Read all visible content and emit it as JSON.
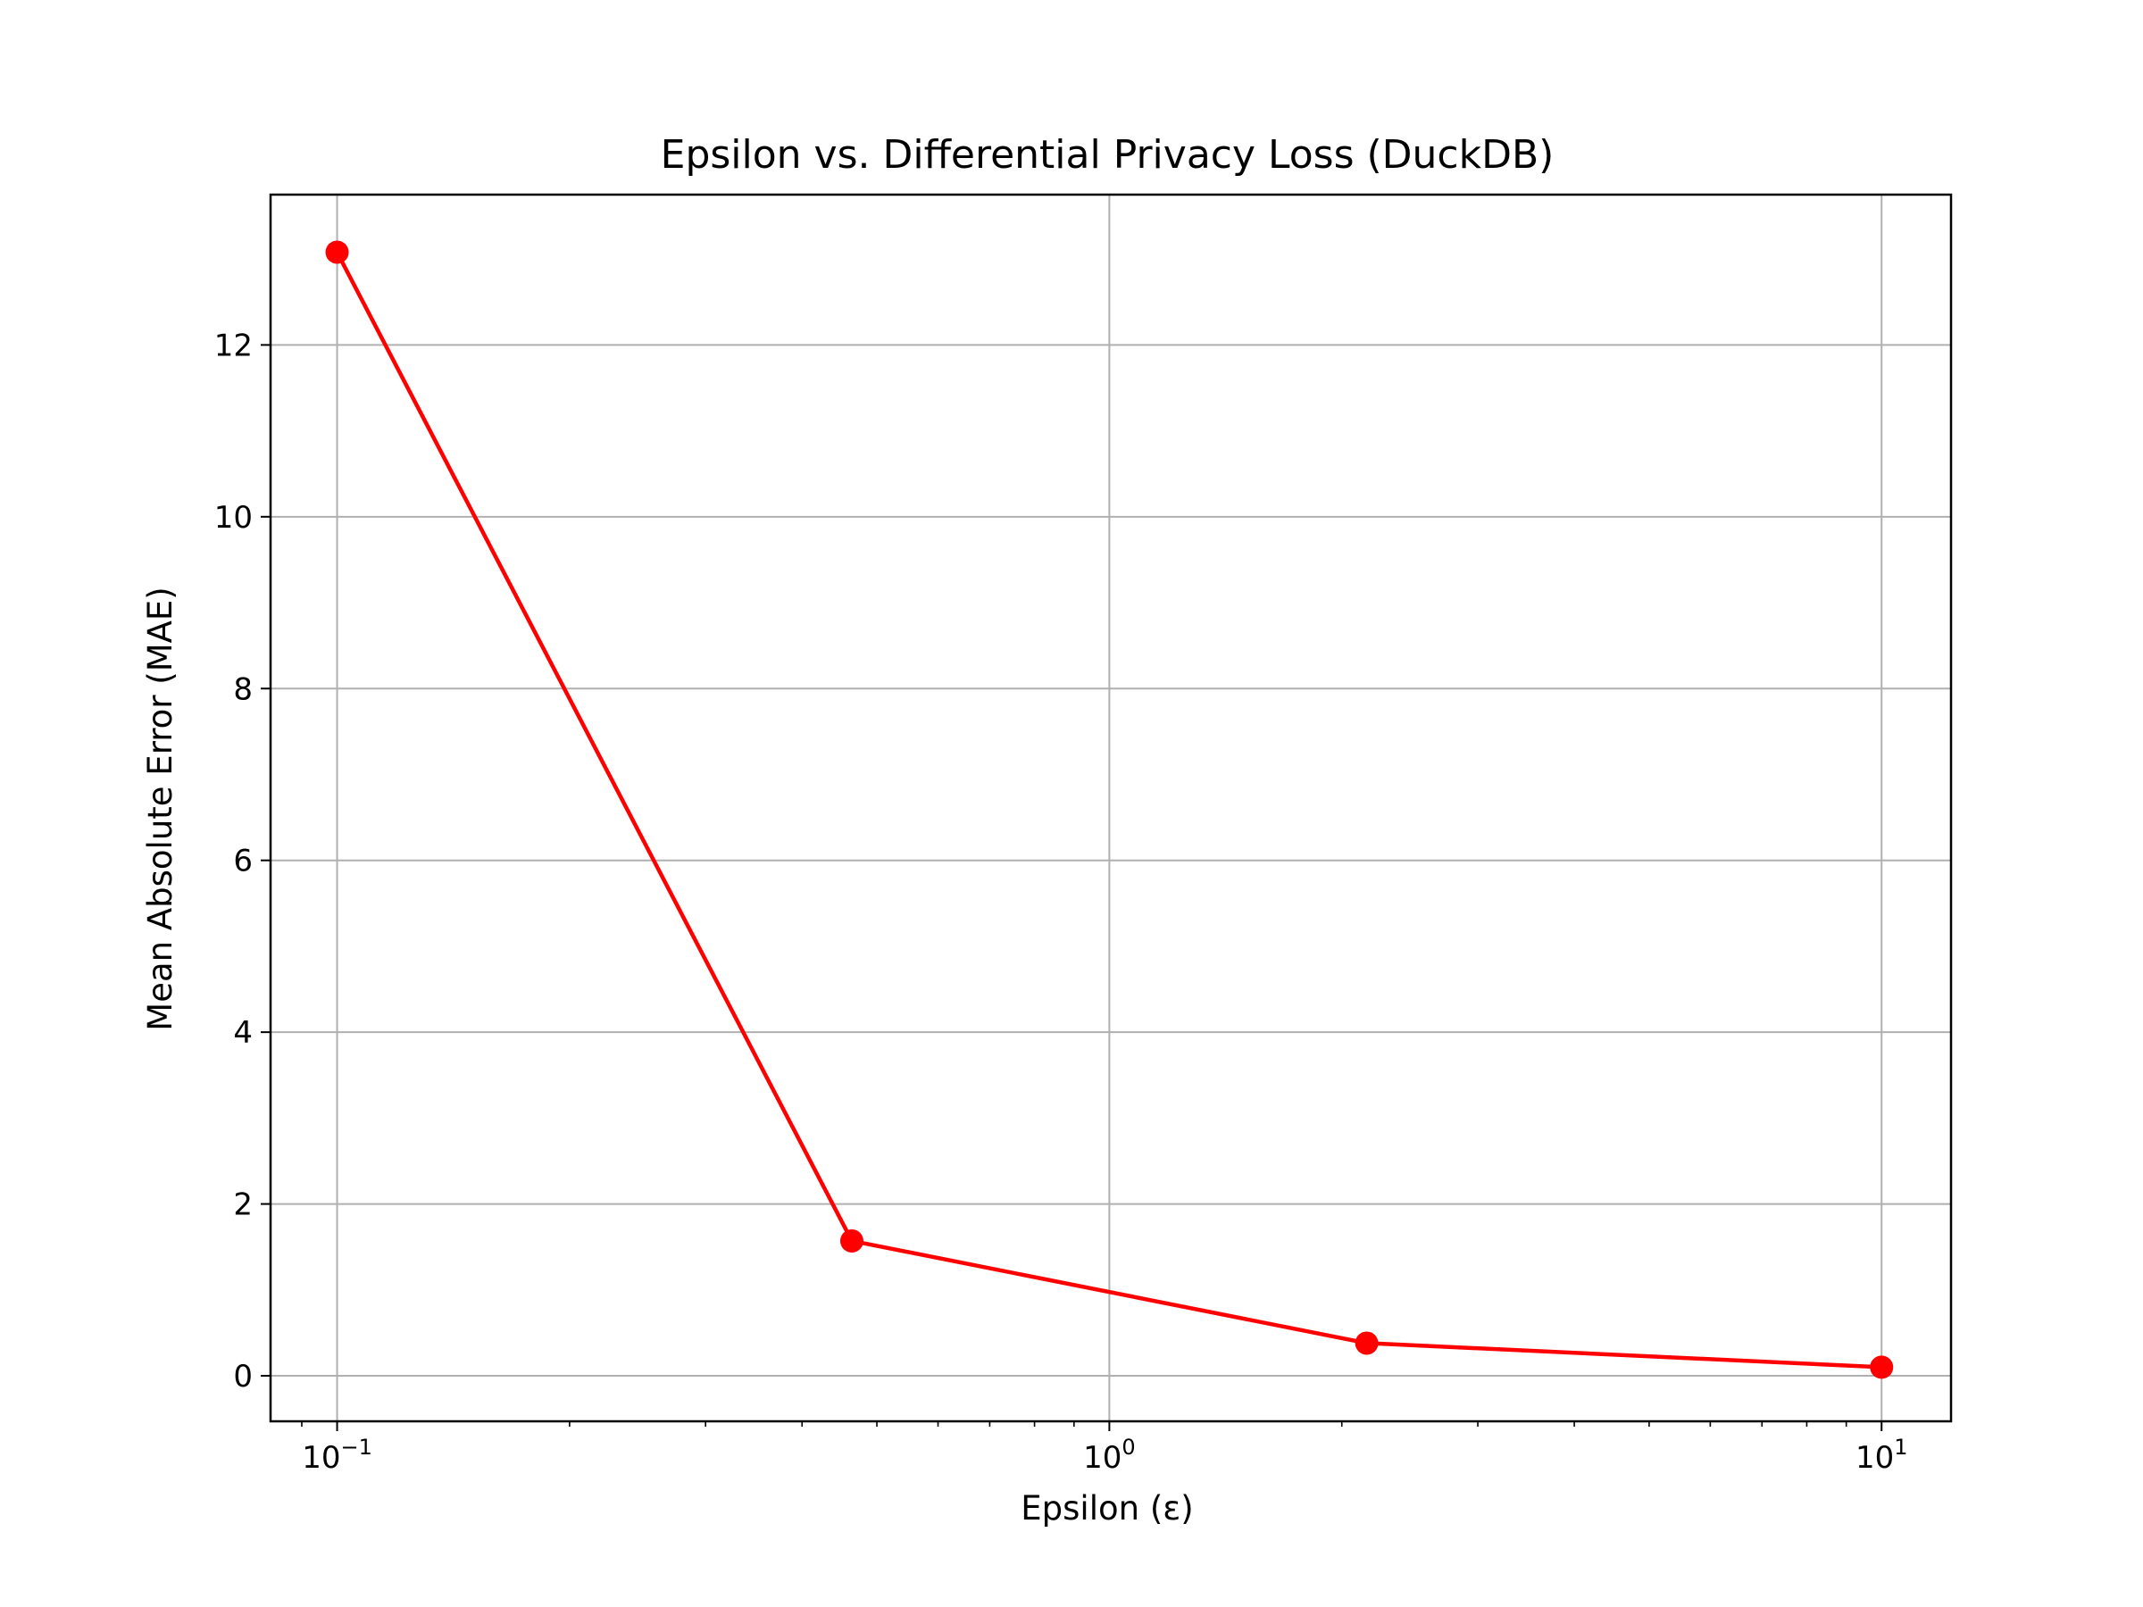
{
  "chart_data": {
    "type": "line",
    "title": "Epsilon vs. Differential Privacy Loss (DuckDB)",
    "xlabel": "Epsilon (ε)",
    "ylabel": "Mean Absolute Error (MAE)",
    "x_scale": "log",
    "xlim": [
      0.082,
      12.3
    ],
    "ylim": [
      -0.53,
      13.75
    ],
    "grid": true,
    "x_ticks": [
      {
        "value": 0.1,
        "base": "10",
        "exp": "−1"
      },
      {
        "value": 1,
        "base": "10",
        "exp": "0"
      },
      {
        "value": 10,
        "base": "10",
        "exp": "1"
      }
    ],
    "y_ticks": [
      0,
      2,
      4,
      6,
      8,
      10,
      12
    ],
    "series": [
      {
        "color": "#ff0000",
        "marker": "circle",
        "x": [
          0.1,
          0.464,
          2.154,
          10
        ],
        "y": [
          13.08,
          1.57,
          0.38,
          0.1
        ]
      }
    ]
  }
}
